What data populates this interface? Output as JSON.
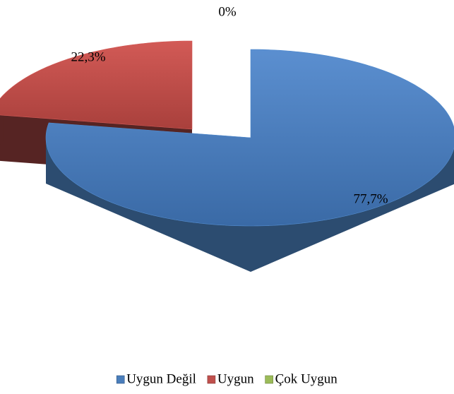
{
  "chart_data": {
    "type": "pie",
    "categories": [
      "Uygun Değil",
      "Uygun",
      "Çok Uygun"
    ],
    "values": [
      77.7,
      22.3,
      0
    ],
    "value_labels": [
      "77,7%",
      "22,3%",
      "0%"
    ],
    "colors": [
      "#4a7ebb",
      "#c0504d",
      "#9bbb59"
    ],
    "legend": "bottom"
  }
}
